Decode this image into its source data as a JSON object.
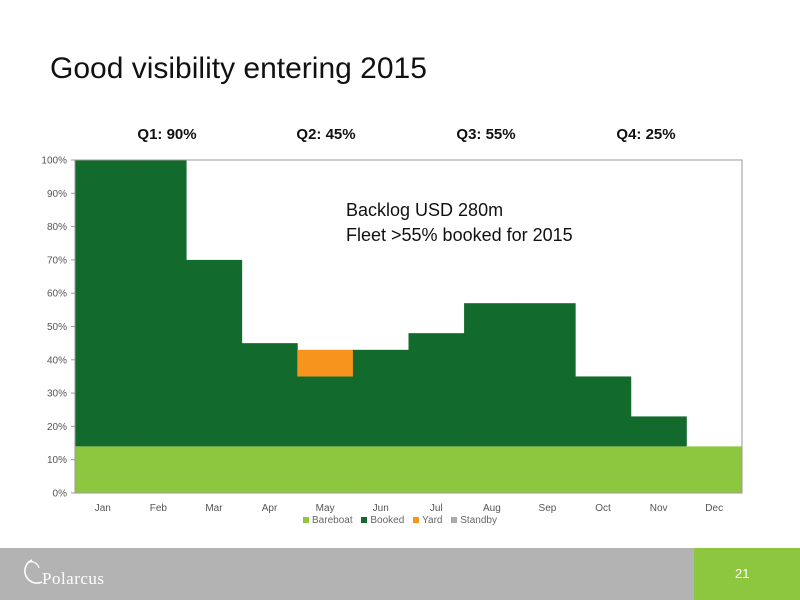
{
  "slide": {
    "title": "Good visibility entering 2015"
  },
  "quarters": [
    {
      "label": "Q1: 90%"
    },
    {
      "label": "Q2: 45%"
    },
    {
      "label": "Q3: 55%"
    },
    {
      "label": "Q4: 25%"
    }
  ],
  "annotation": {
    "line1": "Backlog USD 280m",
    "line2": "Fleet >55% booked for 2015"
  },
  "chart_data": {
    "type": "bar",
    "stacked": true,
    "categories": [
      "Jan",
      "Feb",
      "Mar",
      "Apr",
      "May",
      "Jun",
      "Jul",
      "Aug",
      "Sep",
      "Oct",
      "Nov",
      "Dec"
    ],
    "series": [
      {
        "name": "Bareboat",
        "color": "#8dc63f",
        "values": [
          14,
          14,
          14,
          14,
          14,
          14,
          14,
          14,
          14,
          14,
          14,
          14
        ]
      },
      {
        "name": "Booked",
        "color": "#136a2d",
        "values": [
          86,
          86,
          56,
          31,
          21,
          29,
          34,
          43,
          43,
          21,
          9,
          0
        ]
      },
      {
        "name": "Yard",
        "color": "#f7941d",
        "values": [
          0,
          0,
          0,
          0,
          8,
          0,
          0,
          0,
          0,
          0,
          0,
          0
        ]
      },
      {
        "name": "Standby",
        "color": "#aaaaaa",
        "values": [
          0,
          0,
          0,
          0,
          0,
          0,
          0,
          0,
          0,
          0,
          0,
          0
        ]
      }
    ],
    "ylim": [
      0,
      100
    ],
    "yticks": [
      "0%",
      "10%",
      "20%",
      "30%",
      "40%",
      "50%",
      "60%",
      "70%",
      "80%",
      "90%",
      "100%"
    ],
    "legend_position": "bottom",
    "grid": false
  },
  "footer": {
    "logo_text": "Polarcus",
    "page_number": "21"
  },
  "colors": {
    "footer_bg": "#b3b3b3",
    "accent": "#8dc63f"
  }
}
